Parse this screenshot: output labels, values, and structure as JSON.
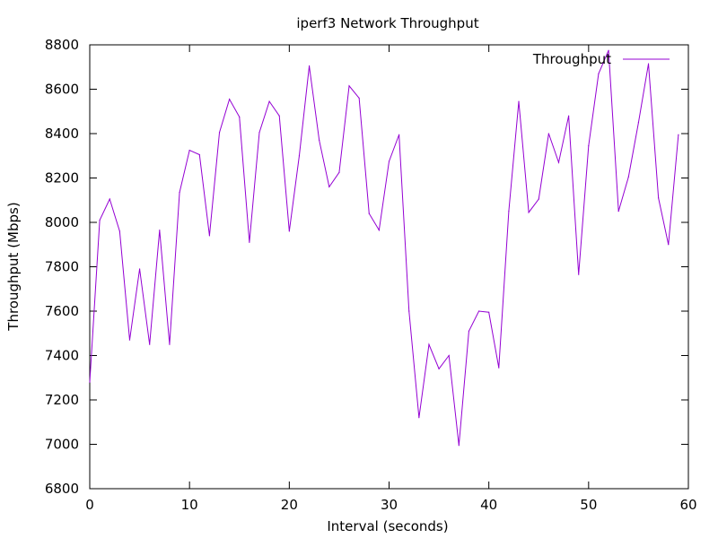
{
  "chart_data": {
    "type": "line",
    "title": "iperf3 Network Throughput",
    "xlabel": "Interval (seconds)",
    "ylabel": "Throughput (Mbps)",
    "xlim": [
      0,
      60
    ],
    "ylim": [
      6800,
      8800
    ],
    "xticks": [
      0,
      10,
      20,
      30,
      40,
      50,
      60
    ],
    "yticks": [
      6800,
      7000,
      7200,
      7400,
      7600,
      7800,
      8000,
      8200,
      8400,
      8600,
      8800
    ],
    "grid": false,
    "legend_position": "top-right",
    "series": [
      {
        "name": "Throughput",
        "color": "#9400d3",
        "x": [
          0,
          1,
          2,
          3,
          4,
          5,
          6,
          7,
          8,
          9,
          10,
          11,
          12,
          13,
          14,
          15,
          16,
          17,
          18,
          19,
          20,
          21,
          22,
          23,
          24,
          25,
          26,
          27,
          28,
          29,
          30,
          31,
          32,
          33,
          34,
          35,
          36,
          37,
          38,
          39,
          40,
          41,
          42,
          43,
          44,
          45,
          46,
          47,
          48,
          49,
          50,
          51,
          52,
          53,
          54,
          55,
          56,
          57,
          58,
          59
        ],
        "values": [
          7280,
          8010,
          8105,
          7960,
          7470,
          7790,
          7450,
          7965,
          7450,
          8135,
          8325,
          8305,
          7940,
          8405,
          8555,
          8475,
          7910,
          8405,
          8545,
          8480,
          7960,
          8300,
          8705,
          8370,
          8160,
          8225,
          8615,
          8560,
          8040,
          7965,
          8275,
          8395,
          7600,
          7120,
          7450,
          7340,
          7400,
          6995,
          7510,
          7600,
          7595,
          7345,
          8050,
          8545,
          8045,
          8105,
          8400,
          8270,
          8480,
          7765,
          8345,
          8670,
          8775,
          8050,
          8205,
          8450,
          8715,
          8110,
          7900,
          8395
        ]
      }
    ]
  }
}
